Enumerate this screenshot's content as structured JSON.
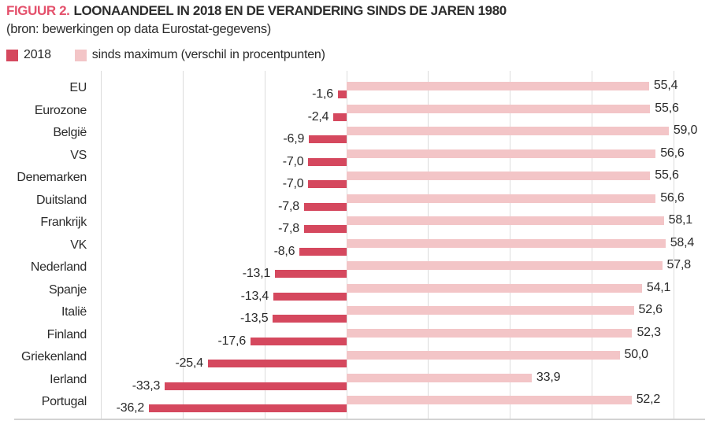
{
  "header": {
    "figure_label": "FIGUUR 2.",
    "title": "LOONAANDEEL IN 2018 EN DE VERANDERING SINDS DE JAREN 1980",
    "source": "(bron: bewerkingen op data Eurostat-gegevens)"
  },
  "legend": {
    "items": [
      {
        "label": "2018",
        "color": "#d5485e"
      },
      {
        "label": "sinds maximum (verschil in procentpunten)",
        "color": "#f3c5c7"
      }
    ]
  },
  "colors": {
    "accent": "#e4516c",
    "dark_bar": "#d5485e",
    "light_bar": "#f3c5c7",
    "grid": "#dcdcdc",
    "axis_line": "#d3d3d3",
    "text": "#2b2b2b"
  },
  "chart_data": {
    "type": "bar",
    "orientation": "horizontal",
    "title": "LOONAANDEEL IN 2018 EN DE VERANDERING SINDS DE JAREN 1980",
    "subtitle": "(bron: bewerkingen op data Eurostat-gegevens)",
    "categories": [
      "EU",
      "Eurozone",
      "België",
      "VS",
      "Denemarken",
      "Duitsland",
      "Frankrijk",
      "VK",
      "Nederland",
      "Spanje",
      "Italië",
      "Finland",
      "Griekenland",
      "Ierland",
      "Portugal"
    ],
    "series": [
      {
        "name": "2018",
        "color": "#d5485e",
        "values": [
          -1.6,
          -2.4,
          -6.9,
          -7.0,
          -7.0,
          -7.8,
          -7.8,
          -8.6,
          -13.1,
          -13.4,
          -13.5,
          -17.6,
          -25.4,
          -33.3,
          -36.2
        ],
        "labels": [
          "-1,6",
          "-2,4",
          "-6,9",
          "-7,0",
          "-7,0",
          "-7,8",
          "-7,8",
          "-8,6",
          "-13,1",
          "-13,4",
          "-13,5",
          "-17,6",
          "-25,4",
          "-33,3",
          "-36,2"
        ]
      },
      {
        "name": "sinds maximum (verschil in procentpunten)",
        "color": "#f3c5c7",
        "values": [
          55.4,
          55.6,
          59.0,
          56.6,
          55.6,
          56.6,
          58.1,
          58.4,
          57.8,
          54.1,
          52.6,
          52.3,
          50.0,
          33.9,
          52.2
        ],
        "labels": [
          "55,4",
          "55,6",
          "59,0",
          "56,6",
          "55,6",
          "56,6",
          "58,1",
          "58,4",
          "57,8",
          "54,1",
          "52,6",
          "52,3",
          "50,0",
          "33,9",
          "52,2"
        ]
      }
    ],
    "xlabel": "",
    "ylabel": "",
    "xlim": [
      -45,
      60
    ],
    "gridline_values": [
      -45,
      -30,
      -15,
      0,
      15,
      30,
      45,
      60
    ],
    "grid": true,
    "legend_position": "top-left"
  }
}
